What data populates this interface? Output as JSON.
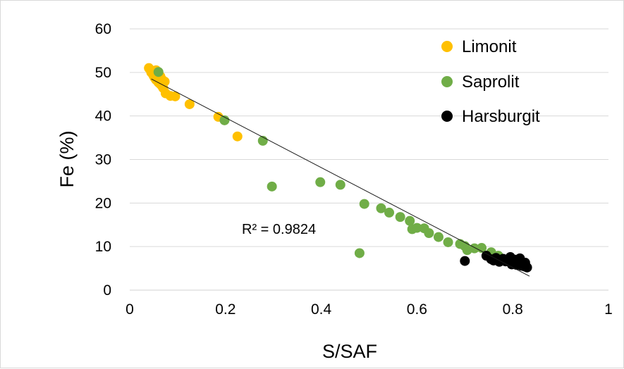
{
  "chart_data": {
    "type": "scatter",
    "xlabel": "S/SAF",
    "ylabel": "Fe (%)",
    "xlim": [
      0,
      1
    ],
    "ylim": [
      0,
      60
    ],
    "x_ticks": [
      "0",
      "0.2",
      "0.4",
      "0.6",
      "0.8",
      "1"
    ],
    "y_ticks": [
      "0",
      "10",
      "20",
      "30",
      "40",
      "50",
      "60"
    ],
    "grid": "horizontal",
    "legend_position": "top-right",
    "annotation": "R² = 0.9824",
    "trendline": {
      "x": [
        0.045,
        0.835
      ],
      "y": [
        48.5,
        3.2
      ]
    },
    "series": [
      {
        "name": "Limonit",
        "color": "#ffc000",
        "points": [
          [
            0.04,
            51.0
          ],
          [
            0.043,
            50.6
          ],
          [
            0.045,
            50.0
          ],
          [
            0.048,
            49.6
          ],
          [
            0.05,
            49.2
          ],
          [
            0.052,
            48.8
          ],
          [
            0.055,
            48.3
          ],
          [
            0.058,
            48.0
          ],
          [
            0.06,
            47.7
          ],
          [
            0.063,
            47.4
          ],
          [
            0.066,
            47.1
          ],
          [
            0.068,
            46.8
          ],
          [
            0.07,
            46.4
          ],
          [
            0.073,
            47.9
          ],
          [
            0.068,
            48.3
          ],
          [
            0.055,
            50.5
          ],
          [
            0.064,
            49.1
          ],
          [
            0.075,
            45.2
          ],
          [
            0.085,
            44.6
          ],
          [
            0.095,
            44.5
          ],
          [
            0.125,
            42.7
          ],
          [
            0.185,
            39.8
          ],
          [
            0.225,
            35.3
          ]
        ]
      },
      {
        "name": "Saprolit",
        "color": "#70ad47",
        "points": [
          [
            0.06,
            50.1
          ],
          [
            0.198,
            39.0
          ],
          [
            0.278,
            34.3
          ],
          [
            0.297,
            23.8
          ],
          [
            0.398,
            24.8
          ],
          [
            0.44,
            24.2
          ],
          [
            0.49,
            19.8
          ],
          [
            0.525,
            18.8
          ],
          [
            0.542,
            17.8
          ],
          [
            0.565,
            16.8
          ],
          [
            0.585,
            15.9
          ],
          [
            0.59,
            14.0
          ],
          [
            0.6,
            14.3
          ],
          [
            0.615,
            14.2
          ],
          [
            0.625,
            13.1
          ],
          [
            0.645,
            12.2
          ],
          [
            0.665,
            11.0
          ],
          [
            0.69,
            10.6
          ],
          [
            0.7,
            10.1
          ],
          [
            0.705,
            9.2
          ],
          [
            0.72,
            9.6
          ],
          [
            0.735,
            9.7
          ],
          [
            0.755,
            8.7
          ],
          [
            0.77,
            7.9
          ],
          [
            0.48,
            8.5
          ]
        ]
      },
      {
        "name": "Harsburgit",
        "color": "#000000",
        "points": [
          [
            0.7,
            6.7
          ],
          [
            0.745,
            7.9
          ],
          [
            0.755,
            7.1
          ],
          [
            0.76,
            6.8
          ],
          [
            0.765,
            7.4
          ],
          [
            0.772,
            6.5
          ],
          [
            0.78,
            7.2
          ],
          [
            0.785,
            6.6
          ],
          [
            0.79,
            6.9
          ],
          [
            0.795,
            7.6
          ],
          [
            0.8,
            6.2
          ],
          [
            0.805,
            7.0
          ],
          [
            0.808,
            5.8
          ],
          [
            0.812,
            6.4
          ],
          [
            0.815,
            7.3
          ],
          [
            0.818,
            5.6
          ],
          [
            0.822,
            6.0
          ],
          [
            0.825,
            5.4
          ],
          [
            0.83,
            5.2
          ],
          [
            0.826,
            6.3
          ],
          [
            0.798,
            5.9
          ],
          [
            0.81,
            6.8
          ]
        ]
      }
    ]
  }
}
